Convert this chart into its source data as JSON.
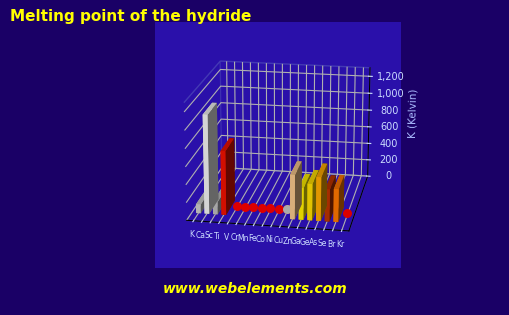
{
  "title": "Melting point of the hydride",
  "ylabel": "K (Kelvin)",
  "watermark": "www.webelements.com",
  "elements": [
    "K",
    "Ca",
    "Sc",
    "Ti",
    "V",
    "Cr",
    "Mn",
    "Fe",
    "Co",
    "Ni",
    "Cu",
    "Zn",
    "Ga",
    "Ge",
    "As",
    "Se",
    "Br",
    "Kr"
  ],
  "values": [
    100,
    1112,
    140,
    720,
    50,
    50,
    50,
    50,
    50,
    50,
    150,
    500,
    360,
    410,
    490,
    360,
    370,
    120
  ],
  "bar_colors": [
    "#cccccc",
    "#f0f0f0",
    "#bbbbbb",
    "#ee1100",
    "#cc0000",
    "#cc0000",
    "#cc0000",
    "#cc0000",
    "#cc0000",
    "#cc0000",
    "#999999",
    "#f5c58a",
    "#ffee00",
    "#ffdd00",
    "#ffaa00",
    "#bb3300",
    "#ff7700",
    "#ffee00"
  ],
  "is_dot": [
    0,
    0,
    0,
    0,
    1,
    1,
    1,
    1,
    1,
    1,
    1,
    0,
    0,
    0,
    0,
    0,
    0,
    1
  ],
  "dot_color": "#dd0000",
  "dot_color_special": "#aaaaaa",
  "ylim": [
    0,
    1300
  ],
  "yticks": [
    0,
    200,
    400,
    600,
    800,
    1000,
    1200
  ],
  "bg_color": "#1a0066",
  "plot_bg_color": "#2a10aa",
  "grid_color": "#5555bb",
  "title_color": "#ffff00",
  "tick_color": "#ccddff",
  "label_color": "#aabbff",
  "watermark_color": "#ffff00"
}
